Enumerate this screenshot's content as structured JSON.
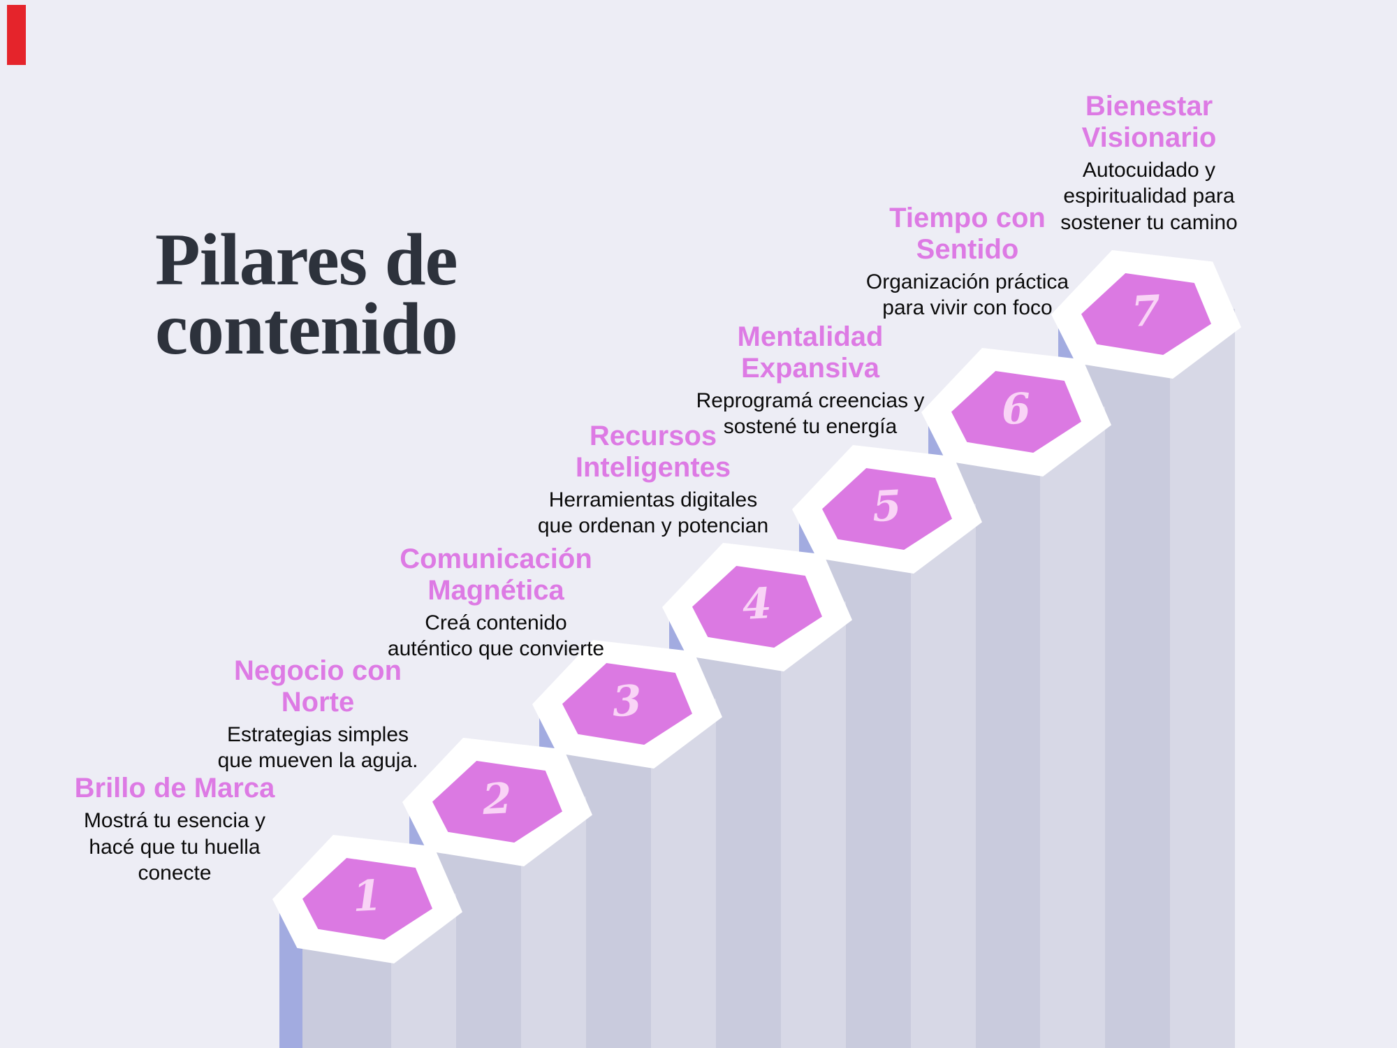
{
  "background_color": "#ededf5",
  "corner_marker_color": "#e5242b",
  "title": {
    "lines": [
      "Pilares de",
      "contenido"
    ],
    "color": "#2d323c"
  },
  "palette": {
    "hex_pink": "#db79e2",
    "number_pink": "#f9d4f6",
    "label_pink": "#dd7ae4",
    "column_dark": "#a2abe0",
    "column_mid": "#c9cbdd",
    "column_light": "#d7d8e6",
    "hex_ring": "#ffffff",
    "text_black": "#0a0a0a"
  },
  "steps": [
    {
      "number": "1",
      "title_lines": [
        "Brillo de Marca"
      ],
      "desc_lines": [
        "Mostrá tu esencia y",
        "hacé que tu huella",
        "conecte"
      ]
    },
    {
      "number": "2",
      "title_lines": [
        "Negocio con",
        "Norte"
      ],
      "desc_lines": [
        "Estrategias simples",
        "que mueven la aguja."
      ]
    },
    {
      "number": "3",
      "title_lines": [
        "Comunicación",
        "Magnética"
      ],
      "desc_lines": [
        "Creá contenido",
        "auténtico que convierte"
      ]
    },
    {
      "number": "4",
      "title_lines": [
        "Recursos",
        "Inteligentes"
      ],
      "desc_lines": [
        "Herramientas digitales",
        "que ordenan y potencian"
      ]
    },
    {
      "number": "5",
      "title_lines": [
        "Mentalidad",
        "Expansiva"
      ],
      "desc_lines": [
        "Reprogramá creencias y",
        "sostené tu energía"
      ]
    },
    {
      "number": "6",
      "title_lines": [
        "Tiempo con",
        "Sentido"
      ],
      "desc_lines": [
        "Organización práctica",
        "para vivir con foco"
      ]
    },
    {
      "number": "7",
      "title_lines": [
        "Bienestar",
        "Visionario"
      ],
      "desc_lines": [
        "Autocuidado y",
        "espiritualidad para",
        "sostener tu camino"
      ]
    }
  ]
}
